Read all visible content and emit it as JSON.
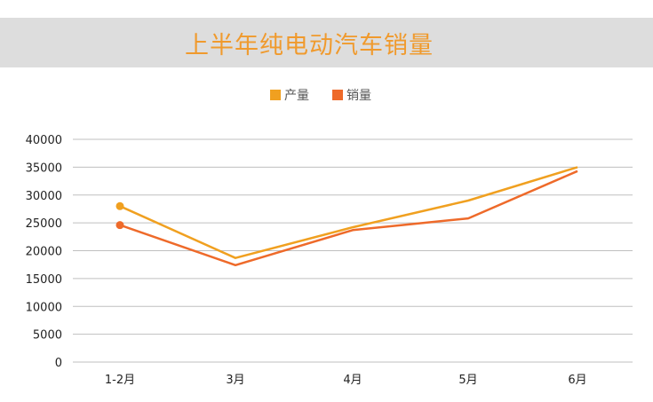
{
  "chart_data": {
    "type": "line",
    "title": "上半年纯电动汽车销量",
    "categories": [
      "1-2月",
      "3月",
      "4月",
      "5月",
      "6月"
    ],
    "series": [
      {
        "name": "产量",
        "color": "#f0a020",
        "values": [
          28000,
          18700,
          24200,
          29000,
          35000
        ]
      },
      {
        "name": "销量",
        "color": "#ee6a2a",
        "values": [
          24600,
          17400,
          23700,
          25800,
          34300
        ]
      }
    ],
    "yticks": [
      0,
      5000,
      10000,
      15000,
      20000,
      25000,
      30000,
      35000,
      40000
    ],
    "ylim": [
      0,
      40000
    ],
    "grid": true,
    "legend_position": "top"
  }
}
